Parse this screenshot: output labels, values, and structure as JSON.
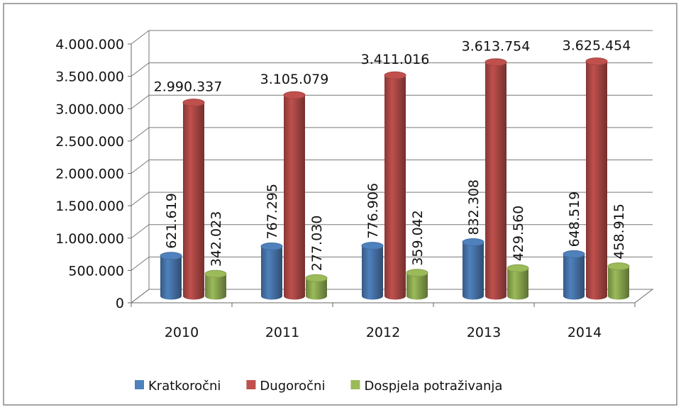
{
  "chart_data": {
    "type": "bar3d",
    "categories": [
      "2010",
      "2011",
      "2012",
      "2013",
      "2014"
    ],
    "series": [
      {
        "name": "Kratkoročni",
        "color": "#4f81bd",
        "values": [
          621619,
          767295,
          776906,
          832308,
          648519
        ],
        "value_labels": [
          "621.619",
          "767.295",
          "776.906",
          "832.308",
          "648.519"
        ]
      },
      {
        "name": "Dugoročni",
        "color": "#c0504d",
        "values": [
          2990337,
          3105079,
          3411016,
          3613754,
          3625454
        ],
        "value_labels": [
          "2.990.337",
          "3.105.079",
          "3.411.016",
          "3.613.754",
          "3.625.454"
        ]
      },
      {
        "name": "Dospjela potraživanja",
        "color": "#9bbb59",
        "values": [
          342023,
          277030,
          359042,
          429560,
          458915
        ],
        "value_labels": [
          "342.023",
          "277.030",
          "359.042",
          "429.560",
          "458.915"
        ]
      }
    ],
    "ylim": [
      0,
      4000000
    ],
    "yticks": [
      0,
      {
        "value": 500000,
        "label": "500.000"
      },
      {
        "value": 1000000,
        "label": "1.000.000"
      },
      {
        "value": 1500000,
        "label": "1.500.000"
      },
      {
        "value": 2000000,
        "label": "2.000.000"
      },
      {
        "value": 2500000,
        "label": "2.500.000"
      },
      {
        "value": 3000000,
        "label": "3.000.000"
      },
      {
        "value": 3500000,
        "label": "3.500.000"
      },
      {
        "value": 4000000,
        "label": "4.000.000"
      }
    ],
    "grid": true,
    "legend": "bottom"
  }
}
